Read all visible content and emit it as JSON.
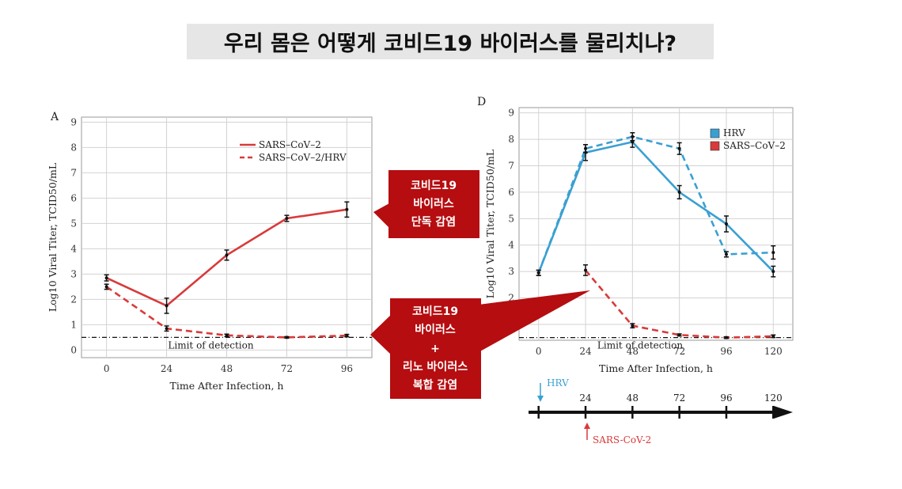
{
  "page_title": "우리 몸은 어떻게 코비드19 바이러스를 물리치나?",
  "callouts": {
    "single": [
      "코비드19",
      "바이러스",
      "단독 감염"
    ],
    "coinfection": [
      "코비드19",
      "바이러스",
      "+",
      "리노 바이러스",
      "복합 감염"
    ]
  },
  "timeline": {
    "ticks": [
      "24",
      "48",
      "72",
      "96",
      "120"
    ],
    "hrv_label": "HRV",
    "sars_label": "SARS-CoV-2"
  },
  "colors": {
    "red": "#d93a3a",
    "blue": "#3aa0d2",
    "callout": "#b50d10"
  },
  "chart_data": [
    {
      "panel": "A",
      "type": "line",
      "title": "",
      "xlabel": "Time After Infection, h",
      "ylabel": "Log10 Viral Titer, TCID50/mL",
      "x": [
        0,
        24,
        48,
        72,
        96
      ],
      "xlim": [
        -10,
        106
      ],
      "ylim": [
        -0.3,
        9.2
      ],
      "yticks": [
        0,
        1,
        2,
        3,
        4,
        5,
        6,
        7,
        8,
        9
      ],
      "grid": true,
      "legend_position": "top-right",
      "detection_limit": 0.5,
      "detection_label": "Limit of detection",
      "series": [
        {
          "name": "SARS–CoV–2",
          "style": "solid",
          "color": "#d93a3a",
          "values": [
            2.85,
            1.75,
            3.75,
            5.2,
            5.55
          ],
          "errors": [
            0.12,
            0.3,
            0.2,
            0.12,
            0.3
          ]
        },
        {
          "name": "SARS–CoV–2/HRV",
          "style": "dashed",
          "color": "#d93a3a",
          "values": [
            2.5,
            0.85,
            0.58,
            0.5,
            0.57
          ],
          "errors": [
            0.1,
            0.1,
            0.05,
            0.03,
            0.05
          ]
        }
      ]
    },
    {
      "panel": "D",
      "type": "line",
      "title": "",
      "xlabel": "Time After Infection, h",
      "ylabel": "Log10 Viral Titer, TCID50/mL",
      "x": [
        0,
        24,
        48,
        72,
        96,
        120
      ],
      "xlim": [
        -10,
        130
      ],
      "ylim": [
        0.4,
        9.2
      ],
      "yticks": [
        1,
        2,
        3,
        4,
        5,
        6,
        7,
        8,
        9
      ],
      "grid": true,
      "legend_position": "top-right",
      "detection_limit": 0.5,
      "detection_label": "Limit of detection",
      "legend": [
        "HRV",
        "SARS–CoV–2"
      ],
      "series": [
        {
          "name": "HRV",
          "style": "solid",
          "color": "#3aa0d2",
          "x": [
            0,
            24,
            48,
            72,
            96,
            120
          ],
          "values": [
            2.95,
            7.5,
            7.9,
            6.0,
            4.8,
            3.0
          ],
          "errors": [
            0.1,
            0.3,
            0.2,
            0.25,
            0.3,
            0.2
          ]
        },
        {
          "name": "HRV",
          "style": "dashed",
          "color": "#3aa0d2",
          "x": [
            0,
            24,
            48,
            72,
            96,
            120
          ],
          "values": [
            2.95,
            7.65,
            8.1,
            7.65,
            3.65,
            3.72
          ],
          "errors": [
            0.1,
            0.15,
            0.15,
            0.22,
            0.1,
            0.25
          ]
        },
        {
          "name": "SARS–CoV–2",
          "style": "dashed",
          "color": "#d93a3a",
          "x": [
            24,
            48,
            72,
            96,
            120
          ],
          "values": [
            3.05,
            0.95,
            0.6,
            0.5,
            0.55
          ],
          "errors": [
            0.2,
            0.08,
            0.04,
            0.03,
            0.05
          ]
        }
      ]
    }
  ]
}
